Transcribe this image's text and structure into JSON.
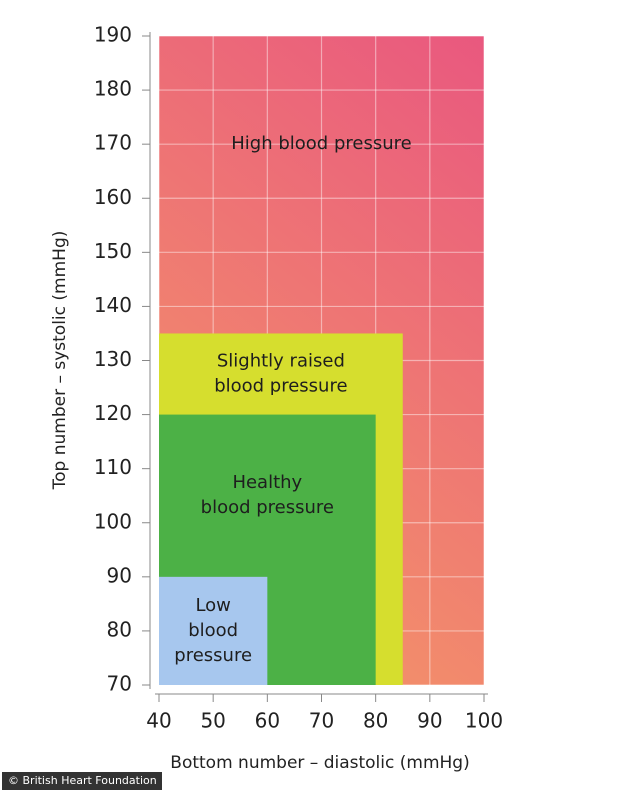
{
  "chart_data": {
    "type": "region",
    "x_label": "Bottom number – diastolic (mmHg)",
    "y_label": "Top number – systolic (mmHg)",
    "xlim": [
      40,
      100
    ],
    "ylim": [
      70,
      190
    ],
    "xticks": [
      40,
      50,
      60,
      70,
      80,
      90,
      100
    ],
    "yticks": [
      70,
      80,
      90,
      100,
      110,
      120,
      130,
      140,
      150,
      160,
      170,
      180,
      190
    ],
    "grid": true,
    "series": [
      {
        "name": [
          "High blood pressure"
        ],
        "color": [
          "#e9587f",
          "#f3906a"
        ],
        "x": [
          40,
          100
        ],
        "y": [
          70,
          190
        ]
      },
      {
        "name": [
          "Slightly raised",
          "blood pressure"
        ],
        "color": "#d6de2e",
        "x": [
          40,
          85
        ],
        "y": [
          70,
          135
        ]
      },
      {
        "name": [
          "Healthy",
          "blood pressure"
        ],
        "color": "#4cb146",
        "x": [
          40,
          80
        ],
        "y": [
          70,
          120
        ]
      },
      {
        "name": [
          "Low",
          "blood",
          "pressure"
        ],
        "color": "#a7c7ee",
        "x": [
          40,
          60
        ],
        "y": [
          70,
          90
        ]
      }
    ],
    "source": "© British Heart Foundation"
  }
}
